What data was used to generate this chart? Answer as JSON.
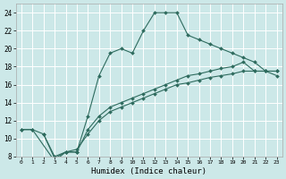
{
  "title": "",
  "xlabel": "Humidex (Indice chaleur)",
  "bg_color": "#cce8e8",
  "line_color": "#2e6b5e",
  "grid_color": "#ffffff",
  "xlim": [
    -0.5,
    23.5
  ],
  "ylim": [
    8,
    25
  ],
  "xticks": [
    0,
    1,
    2,
    3,
    4,
    5,
    6,
    7,
    8,
    9,
    10,
    11,
    12,
    13,
    14,
    15,
    16,
    17,
    18,
    19,
    20,
    21,
    22,
    23
  ],
  "yticks": [
    8,
    10,
    12,
    14,
    16,
    18,
    20,
    22,
    24
  ],
  "line1_x": [
    0,
    1,
    3,
    4,
    5,
    6,
    7,
    8,
    9,
    10,
    11,
    12,
    13,
    14,
    15,
    16,
    17,
    18,
    19,
    20,
    21,
    22,
    23
  ],
  "line1_y": [
    11,
    11,
    7.5,
    8.5,
    8.5,
    12.5,
    17,
    19.5,
    20.0,
    19.5,
    22.0,
    24.0,
    24.0,
    24.0,
    21.5,
    21.0,
    20.5,
    20.0,
    19.5,
    19.0,
    18.5,
    17.5,
    17.0
  ],
  "line2_x": [
    2,
    3,
    4,
    5,
    6,
    7,
    8,
    9,
    10,
    11,
    12,
    13,
    14,
    15,
    16,
    17,
    18,
    19,
    20,
    21,
    22,
    23
  ],
  "line2_y": [
    10.5,
    7.8,
    8.5,
    8.8,
    10.5,
    12.0,
    13.0,
    13.5,
    14.0,
    14.5,
    15.0,
    15.5,
    16.0,
    16.2,
    16.5,
    16.8,
    17.0,
    17.2,
    17.5,
    17.5,
    17.5,
    17.5
  ],
  "line3_x": [
    0,
    1,
    2,
    3,
    4,
    5,
    6,
    7,
    8,
    9,
    10,
    11,
    12,
    13,
    14,
    15,
    16,
    17,
    18,
    19,
    20,
    21,
    22,
    23
  ],
  "line3_y": [
    11.0,
    11.0,
    10.5,
    8.0,
    8.5,
    8.5,
    11.0,
    12.5,
    13.5,
    14.0,
    14.5,
    15.0,
    15.5,
    16.0,
    16.5,
    17.0,
    17.2,
    17.5,
    17.8,
    18.0,
    18.5,
    17.5,
    17.5,
    17.5
  ]
}
